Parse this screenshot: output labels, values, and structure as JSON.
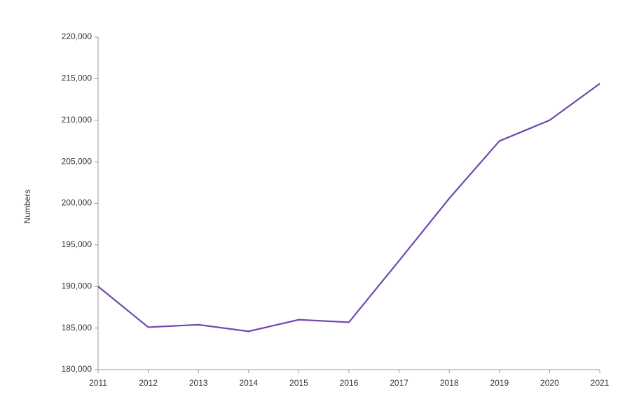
{
  "chart_data": {
    "type": "line",
    "y_label": "Numbers",
    "x": [
      2011,
      2012,
      2013,
      2014,
      2015,
      2016,
      2017,
      2018,
      2019,
      2020,
      2021
    ],
    "series": [
      {
        "color": "#7048b0",
        "values": [
          190000,
          185100,
          185400,
          184600,
          186000,
          185700,
          193100,
          200600,
          207500,
          210000,
          214400
        ]
      }
    ],
    "xlim": [
      2011,
      2021
    ],
    "xticks": [
      2011,
      2012,
      2013,
      2014,
      2015,
      2016,
      2017,
      2018,
      2019,
      2020,
      2021
    ],
    "ylim": [
      180000,
      220000
    ],
    "yticks": [
      {
        "value": 180000,
        "label": "180,000"
      },
      {
        "value": 185000,
        "label": "185,000"
      },
      {
        "value": 190000,
        "label": "190,000"
      },
      {
        "value": 195000,
        "label": "195,000"
      },
      {
        "value": 200000,
        "label": "200,000"
      },
      {
        "value": 205000,
        "label": "205,000"
      },
      {
        "value": 210000,
        "label": "210,000"
      },
      {
        "value": 215000,
        "label": "215,000"
      },
      {
        "value": 220000,
        "label": "220,000"
      }
    ],
    "grid": false
  }
}
